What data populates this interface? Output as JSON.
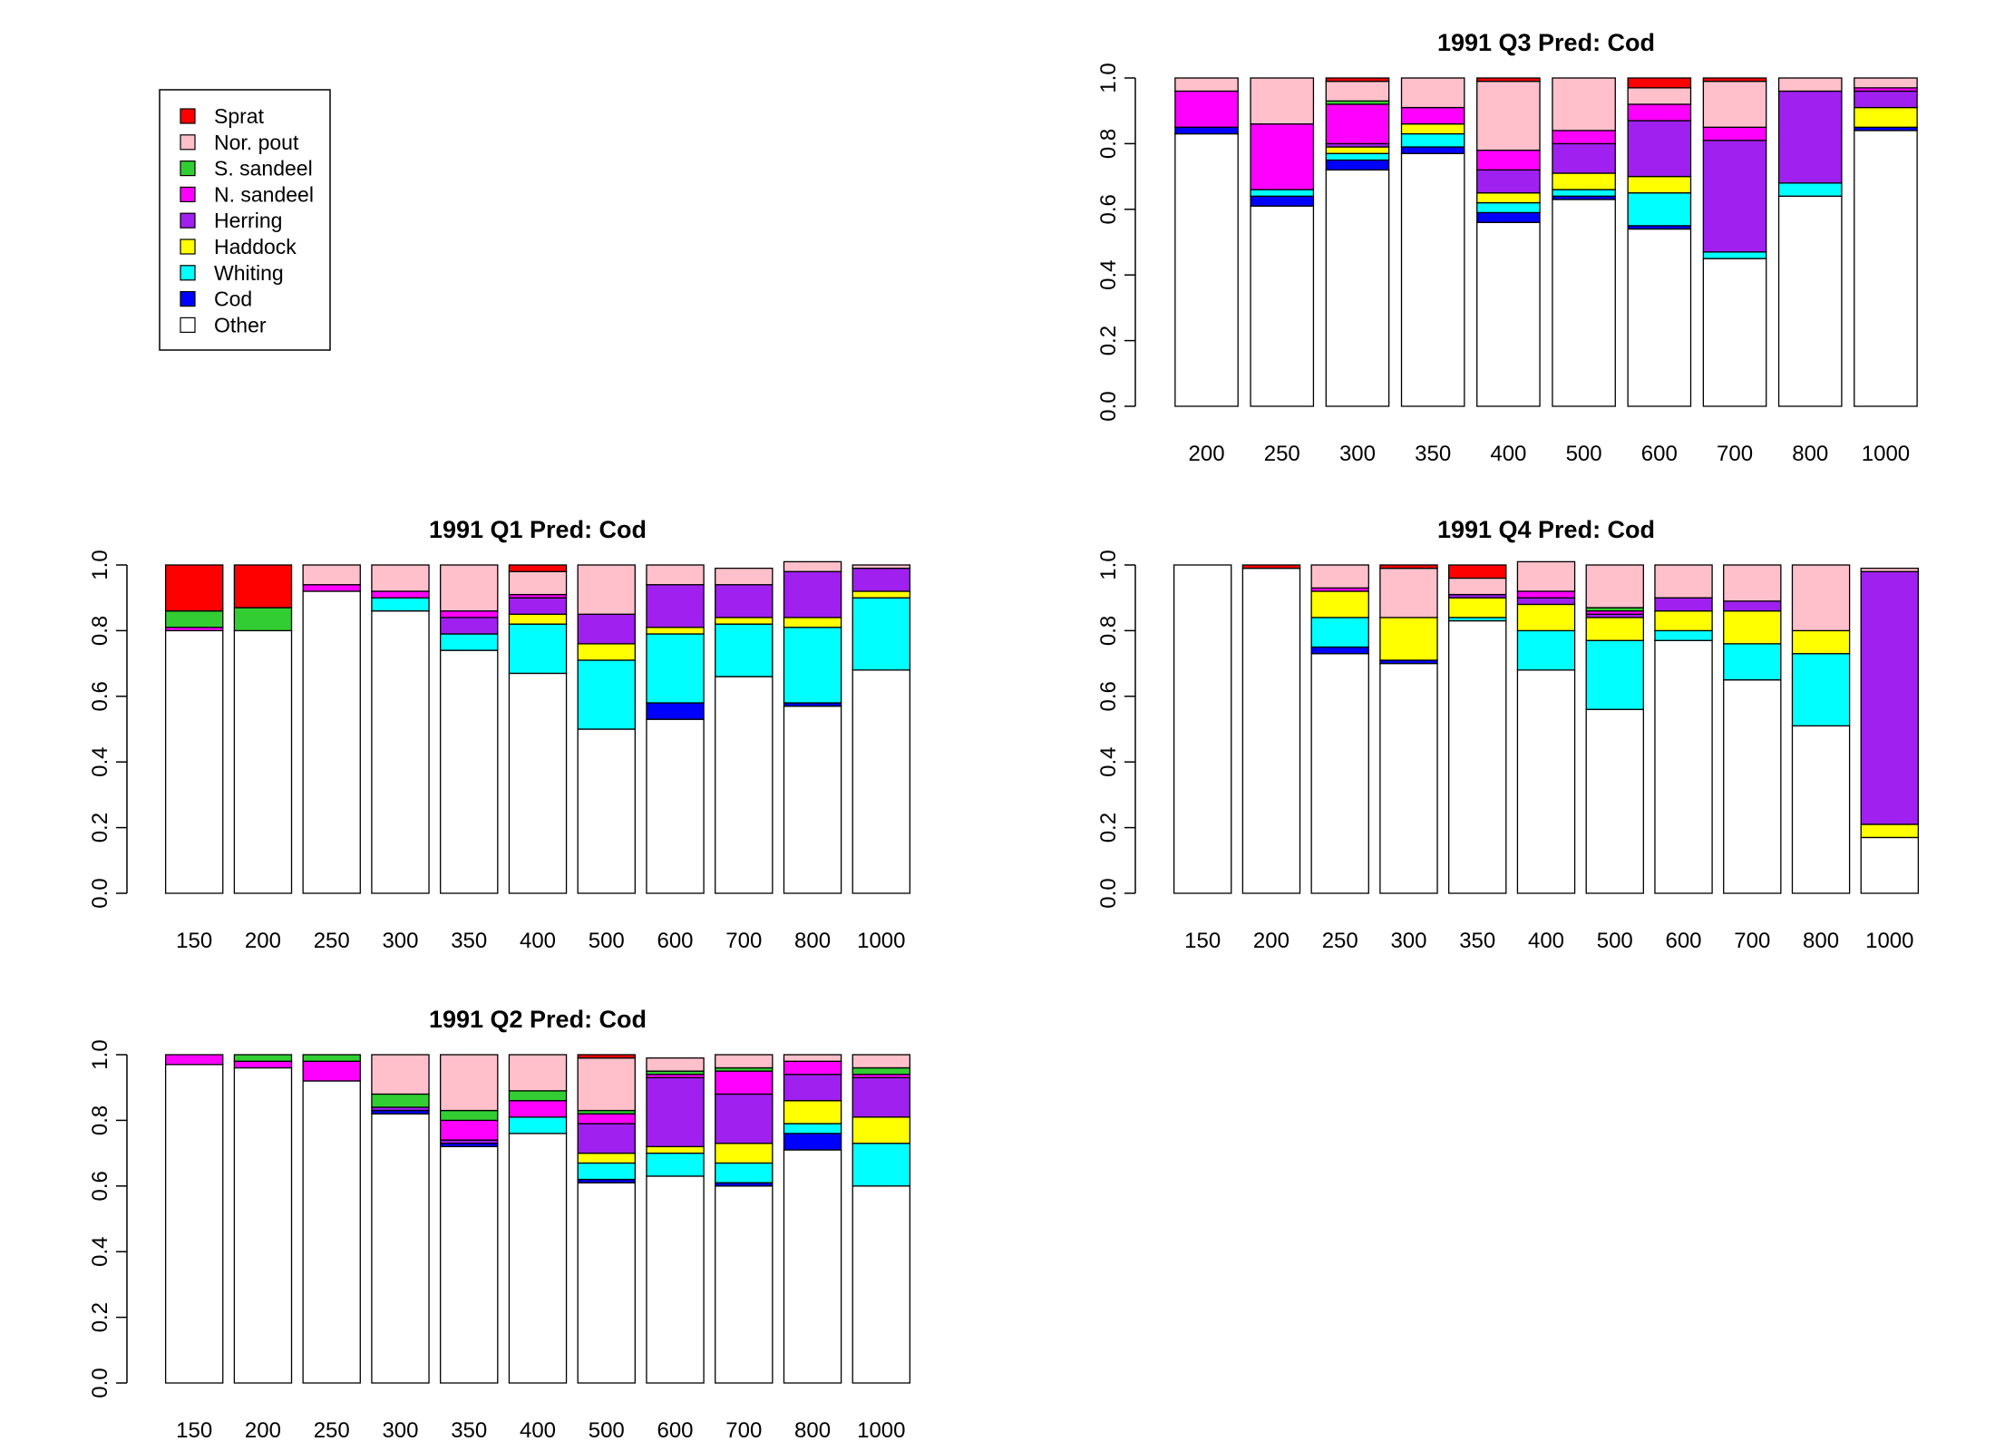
{
  "legend": {
    "entries": [
      "Sprat",
      "Nor. pout",
      "S. sandeel",
      "N. sandeel",
      "Herring",
      "Haddock",
      "Whiting",
      "Cod",
      "Other"
    ],
    "colors": [
      "#ff0000",
      "#ffc0cb",
      "#32cd32",
      "#ff00ff",
      "#a020f0",
      "#ffff00",
      "#00ffff",
      "#0000ff",
      "#ffffff"
    ]
  },
  "stack_order": [
    "Other",
    "Cod",
    "Whiting",
    "Haddock",
    "Herring",
    "N. sandeel",
    "S. sandeel",
    "Nor. pout",
    "Sprat"
  ],
  "chart_data": [
    {
      "type": "bar",
      "stacked": true,
      "title": "1991 Q3  Pred: Cod",
      "categories": [
        "200",
        "250",
        "300",
        "350",
        "400",
        "500",
        "600",
        "700",
        "800",
        "1000"
      ],
      "ylim": [
        0,
        1
      ],
      "yticks": [
        "0.0",
        "0.2",
        "0.4",
        "0.6",
        "0.8",
        "1.0"
      ],
      "series": [
        {
          "name": "Other",
          "values": [
            0.83,
            0.61,
            0.72,
            0.77,
            0.56,
            0.63,
            0.54,
            0.45,
            0.64,
            0.84
          ]
        },
        {
          "name": "Cod",
          "values": [
            0.02,
            0.03,
            0.03,
            0.02,
            0.03,
            0.01,
            0.01,
            0.0,
            0.0,
            0.01
          ]
        },
        {
          "name": "Whiting",
          "values": [
            0.0,
            0.02,
            0.02,
            0.04,
            0.03,
            0.02,
            0.1,
            0.02,
            0.04,
            0.0
          ]
        },
        {
          "name": "Haddock",
          "values": [
            0.0,
            0.0,
            0.02,
            0.03,
            0.03,
            0.05,
            0.05,
            0.0,
            0.0,
            0.06
          ]
        },
        {
          "name": "Herring",
          "values": [
            0.0,
            0.0,
            0.01,
            0.0,
            0.07,
            0.09,
            0.17,
            0.34,
            0.28,
            0.05
          ]
        },
        {
          "name": "N. sandeel",
          "values": [
            0.11,
            0.2,
            0.12,
            0.05,
            0.06,
            0.04,
            0.05,
            0.04,
            0.0,
            0.01
          ]
        },
        {
          "name": "S. sandeel",
          "values": [
            0.0,
            0.0,
            0.01,
            0.0,
            0.0,
            0.0,
            0.0,
            0.0,
            0.0,
            0.0
          ]
        },
        {
          "name": "Nor. pout",
          "values": [
            0.04,
            0.14,
            0.06,
            0.09,
            0.21,
            0.16,
            0.05,
            0.14,
            0.04,
            0.03
          ]
        },
        {
          "name": "Sprat",
          "values": [
            0.0,
            0.0,
            0.01,
            0.0,
            0.01,
            0.0,
            0.03,
            0.01,
            0.0,
            0.0
          ]
        }
      ]
    },
    {
      "type": "bar",
      "stacked": true,
      "title": "1991 Q1  Pred: Cod",
      "categories": [
        "150",
        "200",
        "250",
        "300",
        "350",
        "400",
        "500",
        "600",
        "700",
        "800",
        "1000"
      ],
      "ylim": [
        0,
        1
      ],
      "yticks": [
        "0.0",
        "0.2",
        "0.4",
        "0.6",
        "0.8",
        "1.0"
      ],
      "series": [
        {
          "name": "Other",
          "values": [
            0.8,
            0.8,
            0.92,
            0.86,
            0.74,
            0.67,
            0.5,
            0.53,
            0.66,
            0.57,
            0.68
          ]
        },
        {
          "name": "Cod",
          "values": [
            0.0,
            0.0,
            0.0,
            0.0,
            0.0,
            0.0,
            0.0,
            0.05,
            0.0,
            0.01,
            0.0
          ]
        },
        {
          "name": "Whiting",
          "values": [
            0.0,
            0.0,
            0.0,
            0.04,
            0.05,
            0.15,
            0.21,
            0.21,
            0.16,
            0.23,
            0.22
          ]
        },
        {
          "name": "Haddock",
          "values": [
            0.0,
            0.0,
            0.0,
            0.0,
            0.0,
            0.03,
            0.05,
            0.02,
            0.02,
            0.03,
            0.02
          ]
        },
        {
          "name": "Herring",
          "values": [
            0.0,
            0.0,
            0.0,
            0.0,
            0.05,
            0.05,
            0.09,
            0.13,
            0.1,
            0.14,
            0.07
          ]
        },
        {
          "name": "N. sandeel",
          "values": [
            0.01,
            0.0,
            0.02,
            0.02,
            0.02,
            0.01,
            0.0,
            0.0,
            0.0,
            0.0,
            0.0
          ]
        },
        {
          "name": "S. sandeel",
          "values": [
            0.05,
            0.07,
            0.0,
            0.0,
            0.0,
            0.0,
            0.0,
            0.0,
            0.0,
            0.0,
            0.0
          ]
        },
        {
          "name": "Nor. pout",
          "values": [
            0.0,
            0.0,
            0.06,
            0.08,
            0.14,
            0.07,
            0.15,
            0.06,
            0.05,
            0.03,
            0.01
          ]
        },
        {
          "name": "Sprat",
          "values": [
            0.14,
            0.13,
            0.0,
            0.0,
            0.0,
            0.02,
            0.0,
            0.0,
            0.0,
            0.0,
            0.0
          ]
        }
      ]
    },
    {
      "type": "bar",
      "stacked": true,
      "title": "1991 Q4  Pred: Cod",
      "categories": [
        "150",
        "200",
        "250",
        "300",
        "350",
        "400",
        "500",
        "600",
        "700",
        "800",
        "1000"
      ],
      "ylim": [
        0,
        1
      ],
      "yticks": [
        "0.0",
        "0.2",
        "0.4",
        "0.6",
        "0.8",
        "1.0"
      ],
      "series": [
        {
          "name": "Other",
          "values": [
            1.0,
            0.99,
            0.73,
            0.7,
            0.83,
            0.68,
            0.56,
            0.77,
            0.65,
            0.51,
            0.17
          ]
        },
        {
          "name": "Cod",
          "values": [
            0.0,
            0.0,
            0.02,
            0.01,
            0.0,
            0.0,
            0.0,
            0.0,
            0.0,
            0.0,
            0.0
          ]
        },
        {
          "name": "Whiting",
          "values": [
            0.0,
            0.0,
            0.09,
            0.0,
            0.01,
            0.12,
            0.21,
            0.03,
            0.11,
            0.22,
            0.0
          ]
        },
        {
          "name": "Haddock",
          "values": [
            0.0,
            0.0,
            0.08,
            0.13,
            0.06,
            0.08,
            0.07,
            0.06,
            0.1,
            0.07,
            0.04
          ]
        },
        {
          "name": "Herring",
          "values": [
            0.0,
            0.0,
            0.0,
            0.0,
            0.01,
            0.02,
            0.01,
            0.04,
            0.03,
            0.0,
            0.77
          ]
        },
        {
          "name": "N. sandeel",
          "values": [
            0.0,
            0.0,
            0.01,
            0.0,
            0.0,
            0.02,
            0.01,
            0.0,
            0.0,
            0.0,
            0.0
          ]
        },
        {
          "name": "S. sandeel",
          "values": [
            0.0,
            0.0,
            0.0,
            0.0,
            0.0,
            0.0,
            0.01,
            0.0,
            0.0,
            0.0,
            0.0
          ]
        },
        {
          "name": "Nor. pout",
          "values": [
            0.0,
            0.0,
            0.07,
            0.15,
            0.05,
            0.09,
            0.13,
            0.1,
            0.11,
            0.2,
            0.01
          ]
        },
        {
          "name": "Sprat",
          "values": [
            0.0,
            0.01,
            0.0,
            0.01,
            0.04,
            0.0,
            0.0,
            0.0,
            0.0,
            0.0,
            0.0
          ]
        }
      ]
    },
    {
      "type": "bar",
      "stacked": true,
      "title": "1991 Q2  Pred: Cod",
      "categories": [
        "150",
        "200",
        "250",
        "300",
        "350",
        "400",
        "500",
        "600",
        "700",
        "800",
        "1000"
      ],
      "ylim": [
        0,
        1
      ],
      "yticks": [
        "0.0",
        "0.2",
        "0.4",
        "0.6",
        "0.8",
        "1.0"
      ],
      "series": [
        {
          "name": "Other",
          "values": [
            0.97,
            0.96,
            0.92,
            0.82,
            0.72,
            0.76,
            0.61,
            0.63,
            0.6,
            0.71,
            0.6
          ]
        },
        {
          "name": "Cod",
          "values": [
            0.0,
            0.0,
            0.0,
            0.01,
            0.01,
            0.0,
            0.01,
            0.0,
            0.01,
            0.05,
            0.0
          ]
        },
        {
          "name": "Whiting",
          "values": [
            0.0,
            0.0,
            0.0,
            0.0,
            0.0,
            0.05,
            0.05,
            0.07,
            0.06,
            0.03,
            0.13
          ]
        },
        {
          "name": "Haddock",
          "values": [
            0.0,
            0.0,
            0.0,
            0.0,
            0.0,
            0.0,
            0.03,
            0.02,
            0.06,
            0.07,
            0.08
          ]
        },
        {
          "name": "Herring",
          "values": [
            0.0,
            0.0,
            0.0,
            0.01,
            0.01,
            0.0,
            0.09,
            0.21,
            0.15,
            0.08,
            0.12
          ]
        },
        {
          "name": "N. sandeel",
          "values": [
            0.03,
            0.02,
            0.06,
            0.0,
            0.06,
            0.05,
            0.03,
            0.01,
            0.07,
            0.04,
            0.01
          ]
        },
        {
          "name": "S. sandeel",
          "values": [
            0.0,
            0.02,
            0.02,
            0.04,
            0.03,
            0.03,
            0.01,
            0.01,
            0.01,
            0.0,
            0.02
          ]
        },
        {
          "name": "Nor. pout",
          "values": [
            0.0,
            0.0,
            0.0,
            0.12,
            0.17,
            0.11,
            0.16,
            0.04,
            0.04,
            0.02,
            0.04
          ]
        },
        {
          "name": "Sprat",
          "values": [
            0.0,
            0.0,
            0.0,
            0.0,
            0.0,
            0.0,
            0.01,
            0.0,
            0.0,
            0.0,
            0.0
          ]
        }
      ]
    }
  ]
}
